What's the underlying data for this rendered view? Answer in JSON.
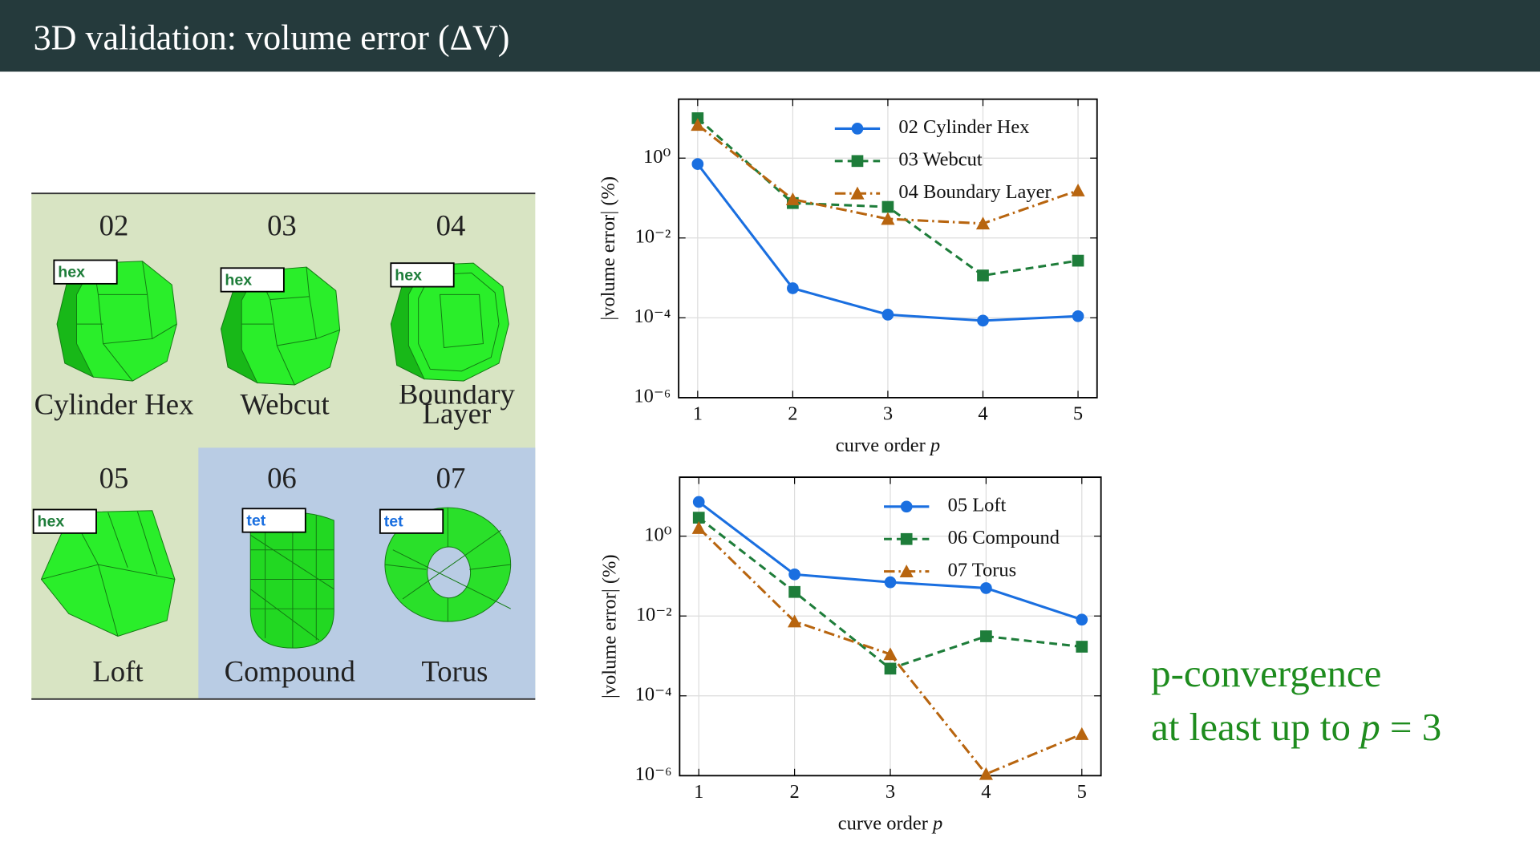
{
  "header": {
    "title": "3D validation: volume error (ΔV)"
  },
  "thumbnails": [
    {
      "id": "02",
      "tag": "hex",
      "label": "Cylinder Hex"
    },
    {
      "id": "03",
      "tag": "hex",
      "label": "Webcut"
    },
    {
      "id": "04",
      "tag": "hex",
      "label": "Boundary Layer"
    },
    {
      "id": "05",
      "tag": "hex",
      "label": "Loft"
    },
    {
      "id": "06",
      "tag": "tet",
      "label": "Compound"
    },
    {
      "id": "07",
      "tag": "tet",
      "label": "Torus"
    }
  ],
  "callout": {
    "line1": "p-convergence",
    "line2": [
      "at least up to ",
      "p",
      " = 3"
    ]
  },
  "chart_data": [
    {
      "type": "line",
      "xlabel": [
        "curve order ",
        "p"
      ],
      "ylabel": "|volume error| (%)",
      "log_y": true,
      "grid": true,
      "legend": "upper right",
      "x": [
        1,
        2,
        3,
        4,
        5
      ],
      "xlim": [
        0.8,
        5.2
      ],
      "xticks": [
        1,
        2,
        3,
        4,
        5
      ],
      "ylim": [
        1e-06,
        30
      ],
      "yticks": [
        {
          "value": 1,
          "label": "10⁰"
        },
        {
          "value": 0.01,
          "label": "10⁻²"
        },
        {
          "value": 0.0001,
          "label": "10⁻⁴"
        },
        {
          "value": 1e-06,
          "label": "10⁻⁶"
        }
      ],
      "series": [
        {
          "name": "02 Cylinder Hex",
          "color": "#1a6fe0",
          "dash": "solid",
          "marker": "circle",
          "values": [
            0.71,
            0.00055,
            0.00012,
            8.5e-05,
            0.00011
          ]
        },
        {
          "name": "03 Webcut",
          "color": "#1e7d3a",
          "dash": "dashed",
          "marker": "square",
          "values": [
            10,
            0.075,
            0.06,
            0.00115,
            0.0027
          ]
        },
        {
          "name": "04 Boundary Layer",
          "color": "#b8650f",
          "dash": "dashdot",
          "marker": "triangle",
          "values": [
            6.8,
            0.093,
            0.03,
            0.023,
            0.155
          ]
        }
      ]
    },
    {
      "type": "line",
      "xlabel": [
        "curve order ",
        "p"
      ],
      "ylabel": "|volume error| (%)",
      "log_y": true,
      "grid": true,
      "legend": "upper right",
      "x": [
        1,
        2,
        3,
        4,
        5
      ],
      "xlim": [
        0.8,
        5.2
      ],
      "xticks": [
        1,
        2,
        3,
        4,
        5
      ],
      "ylim": [
        1e-06,
        30
      ],
      "yticks": [
        {
          "value": 1,
          "label": "10⁰"
        },
        {
          "value": 0.01,
          "label": "10⁻²"
        },
        {
          "value": 0.0001,
          "label": "10⁻⁴"
        },
        {
          "value": 1e-06,
          "label": "10⁻⁶"
        }
      ],
      "series": [
        {
          "name": "05 Loft",
          "color": "#1a6fe0",
          "dash": "solid",
          "marker": "circle",
          "values": [
            7.2,
            0.11,
            0.07,
            0.05,
            0.0081
          ]
        },
        {
          "name": "06 Compound",
          "color": "#1e7d3a",
          "dash": "dashed",
          "marker": "square",
          "values": [
            2.9,
            0.04,
            0.00048,
            0.0031,
            0.0017
          ]
        },
        {
          "name": "07 Torus",
          "color": "#b8650f",
          "dash": "dashdot",
          "marker": "triangle",
          "values": [
            1.6,
            0.0073,
            0.0011,
            1.1e-06,
            1.1e-05
          ]
        }
      ]
    }
  ]
}
